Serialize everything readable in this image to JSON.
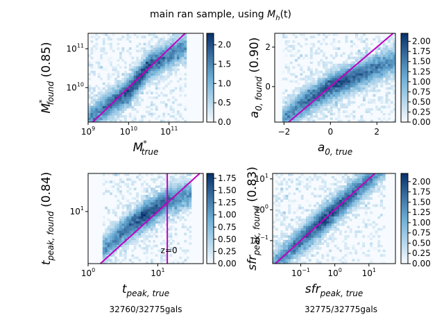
{
  "figure": {
    "title_prefix": "main ran sample, using ",
    "title_math": "M",
    "title_math_sub": "h",
    "title_suffix": "(t)"
  },
  "colormap": {
    "low": "#f7fbff",
    "mid": "#6baed6",
    "high": "#08306b"
  },
  "fit_line_color": "#c000c0",
  "chart_data": [
    {
      "type": "heatmap",
      "id": "mstar",
      "xscale": "log",
      "yscale": "log",
      "xlim": [
        1000000000.0,
        700000000000.0
      ],
      "ylim": [
        1300000000.0,
        250000000000.0
      ],
      "xlabel": "M",
      "xlabel_sup": "*",
      "xlabel_sub": "true",
      "ylabel": "M",
      "ylabel_sup": "*",
      "ylabel_sub": "found",
      "correlation": "(0.85)",
      "xticks": [
        {
          "v": 1000000000.0,
          "base": "10",
          "exp": "9"
        },
        {
          "v": 10000000000.0,
          "base": "10",
          "exp": "10"
        },
        {
          "v": 100000000000.0,
          "base": "10",
          "exp": "11"
        }
      ],
      "yticks": [
        {
          "v": 10000000000.0,
          "base": "10",
          "exp": "10"
        },
        {
          "v": 100000000000.0,
          "base": "10",
          "exp": "11"
        }
      ],
      "colorbar": {
        "range": [
          0,
          2.3
        ],
        "ticks": [
          "0.0",
          "0.5",
          "1.0",
          "1.5",
          "2.0"
        ],
        "values": [
          0,
          0.5,
          1.0,
          1.5,
          2.0
        ]
      },
      "density_ridge": {
        "x": [
          1000000000.0,
          10000000000.0,
          30000000000.0,
          100000000000.0,
          200000000000.0
        ],
        "y": [
          1500000000.0,
          8000000000.0,
          35000000000.0,
          70000000000.0,
          100000000000.0
        ]
      },
      "reference_line": "y=x",
      "annotations": [],
      "footer": ""
    },
    {
      "type": "heatmap",
      "id": "a0",
      "xscale": "linear",
      "yscale": "linear",
      "xlim": [
        -2.4,
        2.8
      ],
      "ylim": [
        -1.8,
        2.7
      ],
      "xlabel": "a",
      "xlabel_sup": "",
      "xlabel_sub": "0, true",
      "ylabel": "a",
      "ylabel_sup": "",
      "ylabel_sub": "0, found",
      "correlation": "(0.90)",
      "xticks": [
        {
          "v": -2,
          "base": "−2",
          "exp": ""
        },
        {
          "v": 0,
          "base": "0",
          "exp": ""
        },
        {
          "v": 2,
          "base": "2",
          "exp": ""
        }
      ],
      "yticks": [
        {
          "v": 0,
          "base": "0",
          "exp": ""
        },
        {
          "v": 2,
          "base": "2",
          "exp": ""
        }
      ],
      "colorbar": {
        "range": [
          0,
          2.2
        ],
        "ticks": [
          "0.00",
          "0.25",
          "0.50",
          "0.75",
          "1.00",
          "1.25",
          "1.50",
          "1.75",
          "2.00"
        ],
        "values": [
          0,
          0.25,
          0.5,
          0.75,
          1.0,
          1.25,
          1.5,
          1.75,
          2.0
        ]
      },
      "density_ridge": {
        "x": [
          -1.8,
          -1.0,
          0,
          1.0,
          2.5
        ],
        "y": [
          -1.4,
          -0.7,
          0.0,
          0.5,
          1.2
        ]
      },
      "reference_line": "y=x",
      "annotations": [],
      "footer": ""
    },
    {
      "type": "heatmap",
      "id": "tpeak",
      "xscale": "log",
      "yscale": "log",
      "xlim": [
        1,
        45
      ],
      "ylim": [
        1.5,
        40
      ],
      "xlabel": "t",
      "xlabel_sup": "",
      "xlabel_sub": "peak, true",
      "ylabel": "t",
      "ylabel_sup": "",
      "ylabel_sub": "peak, found",
      "correlation": "(0.84)",
      "xticks": [
        {
          "v": 1,
          "base": "10",
          "exp": "0"
        },
        {
          "v": 10,
          "base": "10",
          "exp": "1"
        }
      ],
      "yticks": [
        {
          "v": 10,
          "base": "10",
          "exp": "1"
        }
      ],
      "colorbar": {
        "range": [
          0,
          1.85
        ],
        "ticks": [
          "0.00",
          "0.25",
          "0.50",
          "0.75",
          "1.00",
          "1.25",
          "1.50",
          "1.75"
        ],
        "values": [
          0,
          0.25,
          0.5,
          0.75,
          1.0,
          1.25,
          1.5,
          1.75
        ]
      },
      "density_ridge": {
        "x": [
          2,
          4,
          8,
          14,
          25
        ],
        "y": [
          3,
          6,
          10,
          15,
          18
        ]
      },
      "reference_line": "y=x",
      "vertical_line_x": 13.7,
      "annotations": [
        {
          "text": "z=0",
          "x": 14.5,
          "y": 2.2
        }
      ],
      "footer": "32760/32775gals"
    },
    {
      "type": "heatmap",
      "id": "sfrpeak",
      "xscale": "log",
      "yscale": "log",
      "xlim": [
        0.015,
        60
      ],
      "ylim": [
        0.018,
        15
      ],
      "xlabel": "sfr",
      "xlabel_sup": "",
      "xlabel_sub": "peak, true",
      "ylabel": "sfr",
      "ylabel_sup": "",
      "ylabel_sub": "peak, found",
      "correlation": "(0.83)",
      "xticks": [
        {
          "v": 0.1,
          "base": "10",
          "exp": "−1"
        },
        {
          "v": 1,
          "base": "10",
          "exp": "0"
        },
        {
          "v": 10,
          "base": "10",
          "exp": "1"
        }
      ],
      "yticks": [
        {
          "v": 0.1,
          "base": "10",
          "exp": "−1"
        },
        {
          "v": 1,
          "base": "10",
          "exp": "0"
        },
        {
          "v": 10,
          "base": "10",
          "exp": "1"
        }
      ],
      "colorbar": {
        "range": [
          0,
          2.2
        ],
        "ticks": [
          "0.00",
          "0.25",
          "0.50",
          "0.75",
          "1.00",
          "1.25",
          "1.50",
          "1.75",
          "2.00"
        ],
        "values": [
          0,
          0.25,
          0.5,
          0.75,
          1.0,
          1.25,
          1.5,
          1.75,
          2.0
        ]
      },
      "density_ridge": {
        "x": [
          0.02,
          0.1,
          1,
          5,
          20
        ],
        "y": [
          0.02,
          0.1,
          1,
          5,
          20
        ]
      },
      "reference_line": "y=x",
      "annotations": [],
      "footer": "32775/32775gals"
    }
  ]
}
